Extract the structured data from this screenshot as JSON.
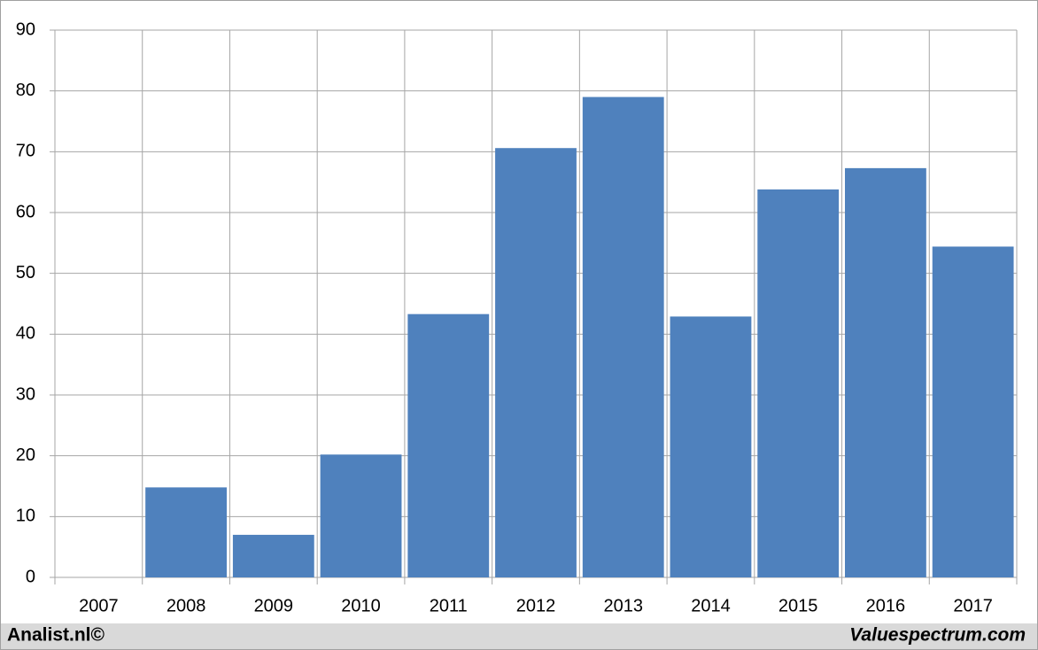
{
  "chart_data": {
    "type": "bar",
    "categories": [
      "2007",
      "2008",
      "2009",
      "2010",
      "2011",
      "2012",
      "2013",
      "2014",
      "2015",
      "2016",
      "2017"
    ],
    "values": [
      null,
      14.8,
      7,
      20.2,
      43.3,
      70.6,
      79,
      42.9,
      63.8,
      67.3,
      54.4
    ],
    "color": "#4f81bd",
    "ylim": [
      0,
      90
    ],
    "yticks": [
      0,
      10,
      20,
      30,
      40,
      50,
      60,
      70,
      80,
      90
    ],
    "grid": true
  },
  "footer": {
    "left": "Analist.nl©",
    "right": "Valuespectrum.com"
  }
}
